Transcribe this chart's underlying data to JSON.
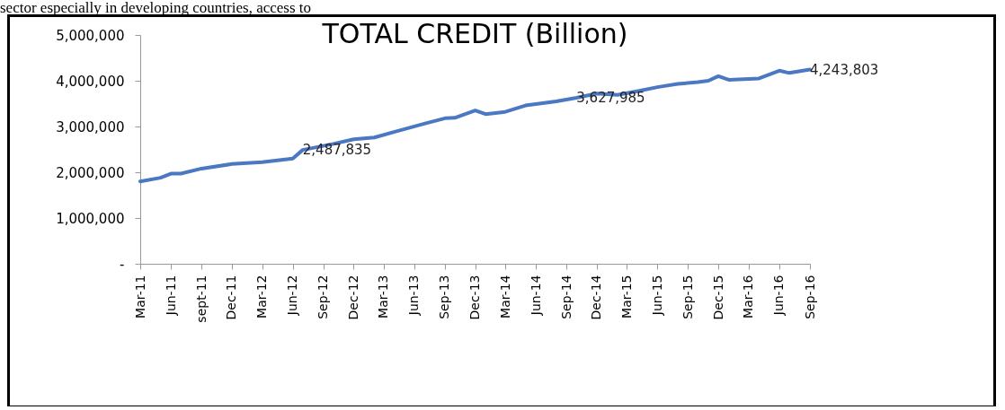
{
  "chart_data": {
    "type": "line",
    "title": "TOTAL CREDIT (Billion)",
    "annotations": [
      "sector especially in developing countries, access to"
    ],
    "x": [
      "2011-03",
      "2011-05",
      "2011-06",
      "2011-07",
      "2011-09",
      "2011-12",
      "2012-03",
      "2012-06",
      "2012-07",
      "2012-10",
      "2012-12",
      "2013-02",
      "2013-04",
      "2013-07",
      "2013-09",
      "2013-10",
      "2013-12",
      "2014-01",
      "2014-03",
      "2014-05",
      "2014-08",
      "2014-10",
      "2014-12",
      "2015-02",
      "2015-04",
      "2015-06",
      "2015-08",
      "2015-10",
      "2015-11",
      "2015-12",
      "2016-01",
      "2016-04",
      "2016-06",
      "2016-07",
      "2016-09"
    ],
    "series": [
      {
        "color": "#4a78c2",
        "values": [
          1800000,
          1880000,
          1970000,
          1970000,
          2080000,
          2180000,
          2220000,
          2300000,
          2487835,
          2620000,
          2720000,
          2760000,
          2880000,
          3060000,
          3180000,
          3190000,
          3350000,
          3270000,
          3320000,
          3460000,
          3550000,
          3627985,
          3720000,
          3690000,
          3770000,
          3860000,
          3930000,
          3970000,
          4000000,
          4100000,
          4020000,
          4050000,
          4220000,
          4170000,
          4243803
        ],
        "value_labels": [
          null,
          null,
          null,
          null,
          null,
          null,
          null,
          null,
          "2,487,835",
          null,
          null,
          null,
          null,
          null,
          null,
          null,
          null,
          null,
          null,
          null,
          null,
          "3,627,985",
          null,
          null,
          null,
          null,
          null,
          null,
          null,
          null,
          null,
          null,
          null,
          null,
          "4,243,803"
        ]
      }
    ],
    "xlim": [
      "2011-03",
      "2016-09"
    ],
    "xticks": [
      {
        "value": "2011-03",
        "label": "Mar-11"
      },
      {
        "value": "2011-06",
        "label": "Jun-11"
      },
      {
        "value": "2011-09",
        "label": "sept-11"
      },
      {
        "value": "2011-12",
        "label": "Dec-11"
      },
      {
        "value": "2012-03",
        "label": "Mar-12"
      },
      {
        "value": "2012-06",
        "label": "Jun-12"
      },
      {
        "value": "2012-09",
        "label": "Sep-12"
      },
      {
        "value": "2012-12",
        "label": "Dec-12"
      },
      {
        "value": "2013-03",
        "label": "Mar-13"
      },
      {
        "value": "2013-06",
        "label": "Jun-13"
      },
      {
        "value": "2013-09",
        "label": "Sep-13"
      },
      {
        "value": "2013-12",
        "label": "Dec-13"
      },
      {
        "value": "2014-03",
        "label": "Mar-14"
      },
      {
        "value": "2014-06",
        "label": "Jun-14"
      },
      {
        "value": "2014-09",
        "label": "Sep-14"
      },
      {
        "value": "2014-12",
        "label": "Dec-14"
      },
      {
        "value": "2015-03",
        "label": "Mar-15"
      },
      {
        "value": "2015-06",
        "label": "Jun-15"
      },
      {
        "value": "2015-09",
        "label": "Sep-15"
      },
      {
        "value": "2015-12",
        "label": "Dec-15"
      },
      {
        "value": "2016-03",
        "label": "Mar-16"
      },
      {
        "value": "2016-06",
        "label": "Jun-16"
      },
      {
        "value": "2016-09",
        "label": "Sep-16"
      }
    ],
    "ylim": [
      0,
      5000000
    ],
    "yticks": [
      {
        "value": 0,
        "label": "-"
      },
      {
        "value": 1000000,
        "label": "1,000,000"
      },
      {
        "value": 2000000,
        "label": "2,000,000"
      },
      {
        "value": 3000000,
        "label": "3,000,000"
      },
      {
        "value": 4000000,
        "label": "4,000,000"
      },
      {
        "value": 5000000,
        "label": "5,000,000"
      }
    ],
    "grid": false,
    "legend": false,
    "marker": "none",
    "line_style": "solid"
  }
}
